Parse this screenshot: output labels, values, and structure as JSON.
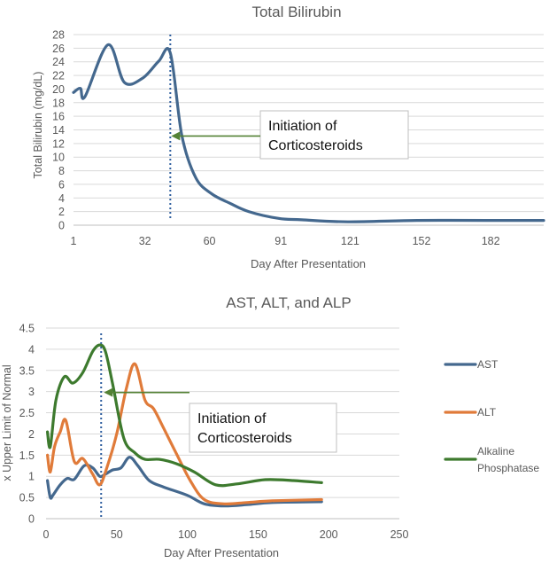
{
  "chart_data": [
    {
      "type": "line",
      "title": "Total Bilirubin",
      "xlabel": "Day After Presentation",
      "ylabel": "Total Bilirubin (mg/dL)",
      "xlim": [
        1,
        205
      ],
      "ylim": [
        0,
        28
      ],
      "xticks": [
        1,
        32,
        60,
        91,
        121,
        152,
        182
      ],
      "yticks": [
        0,
        2,
        4,
        6,
        8,
        10,
        12,
        14,
        16,
        18,
        20,
        22,
        24,
        26,
        28
      ],
      "grid": true,
      "legend": "none",
      "color": "#44688e",
      "series": [
        {
          "name": "Total Bilirubin",
          "x": [
            1,
            4,
            6,
            16,
            23,
            31,
            38,
            43,
            48,
            54,
            61,
            69,
            77,
            90,
            100,
            120,
            150,
            180,
            205
          ],
          "y": [
            19.5,
            20.1,
            18.9,
            26.5,
            21,
            21.6,
            24.1,
            25.3,
            13.2,
            7,
            4.6,
            3.2,
            2,
            1,
            0.8,
            0.5,
            0.7,
            0.7,
            0.7
          ]
        }
      ],
      "vline": {
        "x": 43,
        "style": "dotted",
        "color": "#2e5e9e"
      },
      "annotation": {
        "lines": [
          "Initiation of",
          "Corticosteroids"
        ],
        "arrow_to": {
          "x": 43,
          "y": 13.1
        },
        "arrow_color": "#548235"
      }
    },
    {
      "type": "line",
      "title": "AST, ALT, and ALP",
      "xlabel": "Day After Presentation",
      "ylabel": "x Upper Limit of Normal",
      "xlim": [
        0,
        250
      ],
      "ylim": [
        0,
        4.5
      ],
      "xticks": [
        0,
        50,
        100,
        150,
        200,
        250
      ],
      "yticks": [
        0,
        0.5,
        1,
        1.5,
        2,
        2.5,
        3,
        3.5,
        4,
        4.5
      ],
      "grid": true,
      "legend": "right",
      "series": [
        {
          "name": "AST",
          "color": "#44688e",
          "x": [
            1,
            3,
            5,
            10,
            15,
            20,
            27,
            33,
            38,
            42,
            47,
            53,
            59,
            65,
            73,
            83,
            100,
            112,
            126,
            142,
            160,
            195
          ],
          "y": [
            0.9,
            0.5,
            0.56,
            0.8,
            0.95,
            0.93,
            1.25,
            1.2,
            1,
            1.05,
            1.15,
            1.2,
            1.45,
            1.25,
            0.9,
            0.75,
            0.55,
            0.35,
            0.3,
            0.33,
            0.38,
            0.4
          ]
        },
        {
          "name": "ALT",
          "color": "#e07b3a",
          "x": [
            1,
            3,
            6,
            10,
            14,
            20,
            26,
            33,
            38,
            43,
            50,
            57,
            63,
            70,
            76,
            83,
            92,
            102,
            112,
            126,
            142,
            160,
            195
          ],
          "y": [
            1.5,
            1.1,
            1.7,
            2.05,
            2.32,
            1.35,
            1.42,
            1.05,
            0.8,
            1.2,
            2,
            3.1,
            3.65,
            2.8,
            2.6,
            2.15,
            1.55,
            0.9,
            0.45,
            0.35,
            0.38,
            0.42,
            0.45
          ]
        },
        {
          "name": "Alkaline Phosphatase",
          "color": "#3d7a2e",
          "x": [
            1,
            3,
            7,
            13,
            19,
            26,
            33,
            38,
            42,
            47,
            55,
            63,
            70,
            80,
            92,
            105,
            120,
            135,
            155,
            175,
            195
          ],
          "y": [
            2.05,
            1.7,
            2.8,
            3.35,
            3.2,
            3.45,
            3.95,
            4.1,
            3.95,
            3.2,
            1.9,
            1.55,
            1.4,
            1.4,
            1.3,
            1.1,
            0.8,
            0.82,
            0.92,
            0.9,
            0.85
          ]
        }
      ],
      "vline": {
        "x": 39,
        "style": "dotted",
        "color": "#2e5e9e"
      },
      "annotation": {
        "lines": [
          "Initiation of",
          "Corticosteroids"
        ],
        "arrow_to": {
          "x": 39,
          "y": 3.0
        },
        "arrow_color": "#548235"
      }
    }
  ]
}
